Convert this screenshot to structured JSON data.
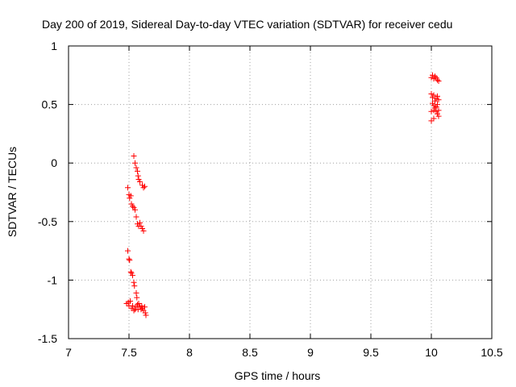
{
  "chart_data": {
    "type": "scatter",
    "title": "Day 200 of 2019, Sidereal Day-to-day VTEC variation (SDTVAR) for receiver cedu",
    "xlabel": "GPS time / hours",
    "ylabel": "SDTVAR / TECUs",
    "xlim": [
      7,
      10.5
    ],
    "ylim": [
      -1.5,
      1
    ],
    "x_ticks": [
      7,
      7.5,
      8,
      8.5,
      9,
      9.5,
      10,
      10.5
    ],
    "x_tick_labels": [
      "7",
      "7.5",
      "8",
      "8.5",
      "9",
      "9.5",
      "10",
      "10.5"
    ],
    "y_ticks": [
      -1.5,
      -1,
      -0.5,
      0,
      0.5,
      1
    ],
    "y_tick_labels": [
      "-1.5",
      "-1",
      "-0.5",
      "0",
      "0.5",
      "1"
    ],
    "grid": true,
    "marker": "+",
    "color": "#ff0000",
    "series": [
      {
        "name": "SDTVAR",
        "points": [
          [
            7.54,
            0.06
          ],
          [
            7.55,
            0.0
          ],
          [
            7.56,
            -0.04
          ],
          [
            7.57,
            -0.07
          ],
          [
            7.575,
            -0.11
          ],
          [
            7.58,
            -0.14
          ],
          [
            7.59,
            -0.16
          ],
          [
            7.61,
            -0.19
          ],
          [
            7.62,
            -0.21
          ],
          [
            7.63,
            -0.2
          ],
          [
            7.49,
            -0.21
          ],
          [
            7.5,
            -0.27
          ],
          [
            7.505,
            -0.3
          ],
          [
            7.515,
            -0.28
          ],
          [
            7.52,
            -0.35
          ],
          [
            7.53,
            -0.37
          ],
          [
            7.54,
            -0.38
          ],
          [
            7.55,
            -0.4
          ],
          [
            7.56,
            -0.46
          ],
          [
            7.57,
            -0.52
          ],
          [
            7.58,
            -0.54
          ],
          [
            7.59,
            -0.51
          ],
          [
            7.6,
            -0.54
          ],
          [
            7.61,
            -0.56
          ],
          [
            7.62,
            -0.58
          ],
          [
            7.49,
            -0.75
          ],
          [
            7.5,
            -0.82
          ],
          [
            7.505,
            -0.83
          ],
          [
            7.515,
            -0.93
          ],
          [
            7.52,
            -0.94
          ],
          [
            7.53,
            -0.96
          ],
          [
            7.54,
            -1.02
          ],
          [
            7.545,
            -1.05
          ],
          [
            7.56,
            -1.11
          ],
          [
            7.565,
            -1.15
          ],
          [
            7.48,
            -1.2
          ],
          [
            7.495,
            -1.19
          ],
          [
            7.5,
            -1.22
          ],
          [
            7.51,
            -1.18
          ],
          [
            7.52,
            -1.24
          ],
          [
            7.53,
            -1.22
          ],
          [
            7.54,
            -1.26
          ],
          [
            7.55,
            -1.25
          ],
          [
            7.56,
            -1.23
          ],
          [
            7.57,
            -1.21
          ],
          [
            7.575,
            -1.25
          ],
          [
            7.58,
            -1.2
          ],
          [
            7.59,
            -1.23
          ],
          [
            7.6,
            -1.25
          ],
          [
            7.605,
            -1.22
          ],
          [
            7.61,
            -1.24
          ],
          [
            7.62,
            -1.26
          ],
          [
            7.63,
            -1.23
          ],
          [
            7.635,
            -1.28
          ],
          [
            7.64,
            -1.3
          ],
          [
            10.0,
            0.73
          ],
          [
            10.01,
            0.75
          ],
          [
            10.02,
            0.72
          ],
          [
            10.03,
            0.74
          ],
          [
            10.04,
            0.73
          ],
          [
            10.05,
            0.71
          ],
          [
            10.06,
            0.7
          ],
          [
            10.0,
            0.59
          ],
          [
            10.01,
            0.56
          ],
          [
            10.02,
            0.58
          ],
          [
            10.03,
            0.53
          ],
          [
            10.04,
            0.55
          ],
          [
            10.05,
            0.57
          ],
          [
            10.06,
            0.54
          ],
          [
            10.01,
            0.51
          ],
          [
            10.02,
            0.49
          ],
          [
            10.03,
            0.47
          ],
          [
            10.04,
            0.48
          ],
          [
            10.05,
            0.5
          ],
          [
            10.06,
            0.45
          ],
          [
            10.0,
            0.44
          ],
          [
            10.02,
            0.45
          ],
          [
            10.04,
            0.44
          ],
          [
            10.05,
            0.42
          ],
          [
            10.06,
            0.4
          ],
          [
            10.0,
            0.36
          ],
          [
            10.02,
            0.38
          ]
        ]
      }
    ]
  }
}
